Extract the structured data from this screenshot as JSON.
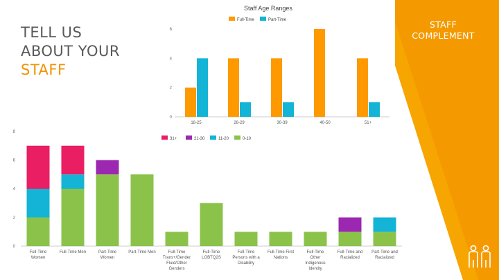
{
  "slide": {
    "heading_line1": "TELL US",
    "heading_line2": "ABOUT YOUR",
    "heading_line3": "STAFF",
    "side_title": "STAFF COMPLEMENT",
    "icon": "people-icon"
  },
  "colors": {
    "accent": "#f39200",
    "accent_light": "#f7a500",
    "text": "#595959"
  },
  "chart_data": [
    {
      "type": "bar",
      "title": "Staff Age Ranges",
      "categories": [
        "18-25",
        "26-29",
        "30-39",
        "40-50",
        "51+"
      ],
      "series": [
        {
          "name": "Full-Time",
          "color": "#ff9900",
          "values": [
            2,
            4,
            4,
            6,
            4
          ]
        },
        {
          "name": "Part-Time",
          "color": "#13b4d6",
          "values": [
            4,
            1,
            1,
            0,
            1
          ]
        }
      ],
      "ylim": [
        0,
        6
      ],
      "yticks": [
        "0",
        "2",
        "4",
        "6"
      ],
      "legend": "top"
    },
    {
      "type": "bar",
      "stacked": true,
      "title": "",
      "categories": [
        [
          "Full-Time",
          "Women"
        ],
        [
          "Full-Time Men"
        ],
        [
          "Part-Time",
          "Women"
        ],
        [
          "Part-Time Men"
        ],
        [
          "Full-Time",
          "Trans+/Gender",
          "Fluid/Other",
          "Genders"
        ],
        [
          "Full-Time",
          "LGBTQ2S"
        ],
        [
          "Full-Time",
          "Persons with a",
          "Disability"
        ],
        [
          "Full-Time First",
          "Nations"
        ],
        [
          "Full-Time",
          "Other",
          "Indigenous",
          "Identity"
        ],
        [
          "Full-Time and",
          "Racialized"
        ],
        [
          "Part-Time and",
          "Racialized"
        ]
      ],
      "series": [
        {
          "name": "0-10",
          "color": "#8bc34a",
          "values": [
            2,
            4,
            5,
            5,
            1,
            3,
            1,
            1,
            1,
            1,
            1
          ]
        },
        {
          "name": "11-20",
          "color": "#13b4d6",
          "values": [
            2,
            1,
            0,
            0,
            0,
            0,
            0,
            0,
            0,
            0,
            1
          ]
        },
        {
          "name": "21-30",
          "color": "#9c27b0",
          "values": [
            0,
            0,
            1,
            0,
            0,
            0,
            0,
            0,
            0,
            1,
            0
          ]
        },
        {
          "name": "31+",
          "color": "#e91e63",
          "values": [
            3,
            2,
            0,
            0,
            0,
            0,
            0,
            0,
            0,
            0,
            0
          ]
        }
      ],
      "legend_order": [
        "31+",
        "21-30",
        "11-20",
        "0-10"
      ],
      "ylim": [
        0,
        8
      ],
      "yticks": [
        "0",
        "2",
        "4",
        "6",
        "8"
      ],
      "legend": "top"
    }
  ]
}
